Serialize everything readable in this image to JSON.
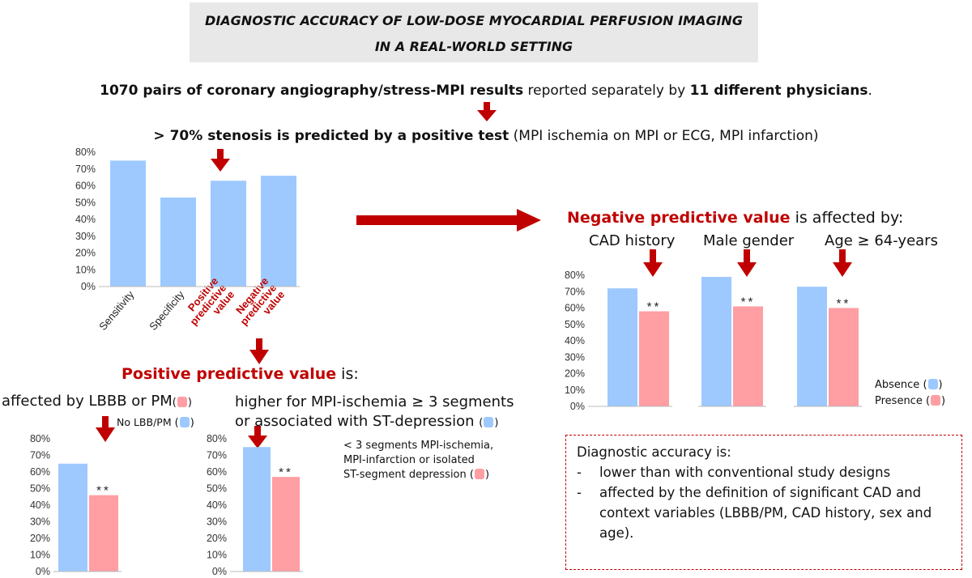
{
  "title": {
    "line1": "DIAGNOSTIC ACCURACY OF LOW-DOSE MYOCARDIAL PERFUSION IMAGING",
    "line2": "IN A REAL-WORLD SETTING"
  },
  "summary": {
    "bold1": "1070 pairs of coronary angiography/stress-MPI results",
    "mid": " reported separately by ",
    "bold2": "11 different physicians",
    "end": "."
  },
  "criterion": {
    "bold": "> 70% stenosis is predicted by a positive test",
    "rest": " (MPI ischemia on MPI or ECG, MPI infarction)"
  },
  "npv_section": {
    "heading_red": "Negative predictive value",
    "heading_rest": " is affected by:",
    "labels": [
      "CAD history",
      "Male gender",
      "Age ≥ 64-years"
    ],
    "legend_absence": "Absence",
    "legend_presence": "Presence"
  },
  "ppv_section": {
    "heading_red": "Positive predictive value",
    "heading_rest": " is:",
    "left_label": "affected by LBBB or PM",
    "left_legend": "No LBB/PM",
    "right_label_1": "higher for MPI-ischemia ≥ 3 segments",
    "right_label_2": "or associated with ST-depression",
    "right_note_1": "< 3 segments MPI-ischemia,",
    "right_note_2": "MPI-infarction or isolated",
    "right_note_3": "ST-segment depression"
  },
  "accuracy": {
    "heading": "Diagnostic accuracy is:",
    "items": [
      "lower than with conventional study designs",
      "affected by the definition of significant CAD and context variables (LBBB/PM, CAD history, sex and age)."
    ]
  },
  "colors": {
    "blue": "#9dc9ff",
    "pink": "#ff9ea3",
    "red": "#c00000"
  },
  "significance": "**",
  "chart_data": [
    {
      "id": "main",
      "type": "bar",
      "categories": [
        "Sensitivity",
        "Specificity",
        "Positive predictive value",
        "Negative predictive value"
      ],
      "values": [
        75,
        53,
        63,
        66
      ],
      "ylim": [
        0,
        80
      ],
      "yticks": [
        "0%",
        "10%",
        "20%",
        "30%",
        "40%",
        "50%",
        "60%",
        "70%",
        "80%"
      ]
    },
    {
      "id": "npv_cad",
      "type": "bar",
      "categories": [
        "Absence",
        "Presence"
      ],
      "values": [
        72,
        58
      ],
      "ylim": [
        0,
        80
      ],
      "yticks": [
        "0%",
        "10%",
        "20%",
        "30%",
        "40%",
        "50%",
        "60%",
        "70%",
        "80%"
      ]
    },
    {
      "id": "npv_male",
      "type": "bar",
      "categories": [
        "Absence",
        "Presence"
      ],
      "values": [
        79,
        61
      ],
      "ylim": [
        0,
        80
      ],
      "yticks": []
    },
    {
      "id": "npv_age",
      "type": "bar",
      "categories": [
        "Absence",
        "Presence"
      ],
      "values": [
        73,
        60
      ],
      "ylim": [
        0,
        80
      ],
      "yticks": []
    },
    {
      "id": "ppv_lbbb",
      "type": "bar",
      "categories": [
        "No LBB/PM",
        "LBBB/PM"
      ],
      "values": [
        65,
        46
      ],
      "ylim": [
        0,
        80
      ],
      "yticks": [
        "0%",
        "10%",
        "20%",
        "30%",
        "40%",
        "50%",
        "60%",
        "70%",
        "80%"
      ]
    },
    {
      "id": "ppv_ischemia",
      "type": "bar",
      "categories": [
        "≥ 3 segments / ST-depression",
        "< 3 segments / infarction / isolated ST"
      ],
      "values": [
        75,
        57
      ],
      "ylim": [
        0,
        80
      ],
      "yticks": [
        "0%",
        "10%",
        "20%",
        "30%",
        "40%",
        "50%",
        "60%",
        "70%",
        "80%"
      ]
    }
  ]
}
